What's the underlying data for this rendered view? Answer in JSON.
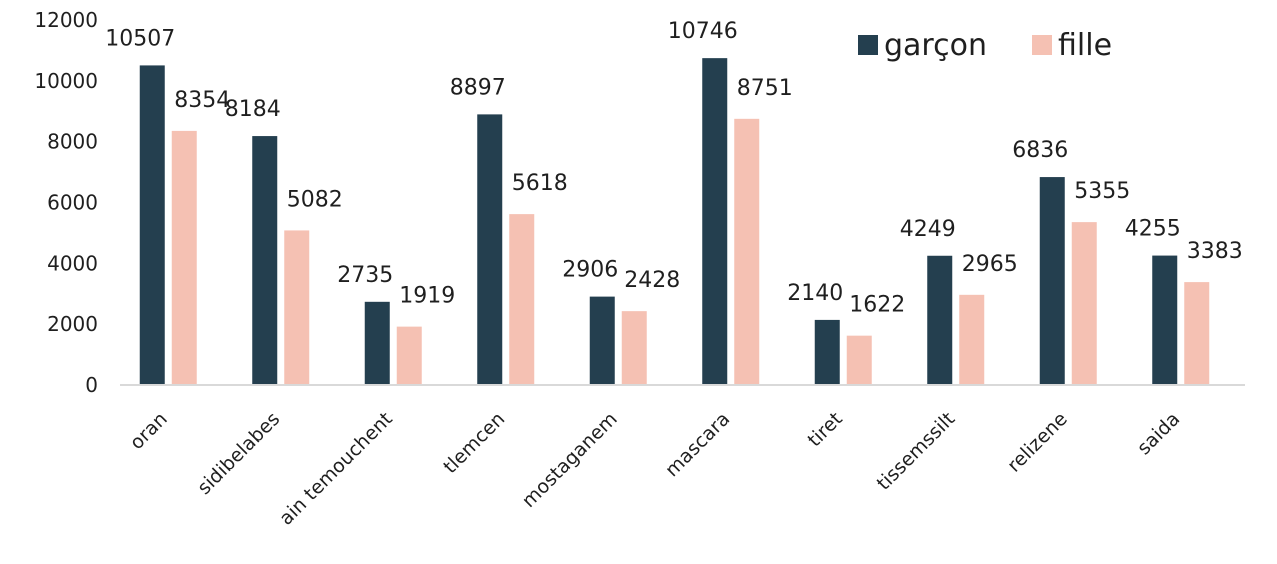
{
  "chart_data": {
    "type": "bar",
    "title": "",
    "xlabel": "",
    "ylabel": "",
    "categories": [
      "oran",
      "sidibelabes",
      "ain temouchent",
      "tlemcen",
      "mostaganem",
      "mascara",
      "tiret",
      "tissemssilt",
      "relizene",
      "saida"
    ],
    "series": [
      {
        "name": "garçon",
        "color": "#243F4F",
        "values": [
          10507,
          8184,
          2735,
          8897,
          2906,
          10746,
          2140,
          4249,
          6836,
          4255
        ]
      },
      {
        "name": "fille",
        "color": "#F5C1B3",
        "values": [
          8354,
          5082,
          1919,
          5618,
          2428,
          8751,
          1622,
          2965,
          5355,
          3383
        ]
      }
    ],
    "ylim": [
      0,
      12000
    ],
    "yticks": [
      0,
      2000,
      4000,
      6000,
      8000,
      10000,
      12000
    ],
    "grid": false,
    "legend_position": "top-right"
  }
}
